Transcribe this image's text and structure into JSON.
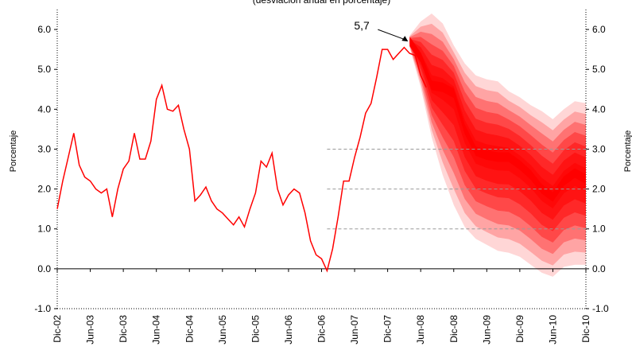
{
  "chart_data": {
    "type": "line",
    "title": "(desviación anual en porcentaje)",
    "ylabel_left": "Porcentaje",
    "ylabel_right": "Porcentaje",
    "ylim": [
      -1.0,
      6.5
    ],
    "yticks": [
      "6.0",
      "5.0",
      "4.0",
      "3.0",
      "2.0",
      "1.0",
      "0.0",
      "-1.0"
    ],
    "ytick_values": [
      6,
      5,
      4,
      3,
      2,
      1,
      0,
      -1
    ],
    "x_range": [
      0,
      96
    ],
    "xticks": [
      {
        "label": "Dic-02",
        "x": 0
      },
      {
        "label": "Jun-03",
        "x": 6
      },
      {
        "label": "Dic-03",
        "x": 12
      },
      {
        "label": "Jun-04",
        "x": 18
      },
      {
        "label": "Dic-04",
        "x": 24
      },
      {
        "label": "Jun-05",
        "x": 30
      },
      {
        "label": "Dic-05",
        "x": 36
      },
      {
        "label": "Jun-06",
        "x": 42
      },
      {
        "label": "Dic-06",
        "x": 48
      },
      {
        "label": "Jun-07",
        "x": 54
      },
      {
        "label": "Dic-07",
        "x": 60
      },
      {
        "label": "Jun-08",
        "x": 66
      },
      {
        "label": "Dic-08",
        "x": 72
      },
      {
        "label": "Jun-09",
        "x": 78
      },
      {
        "label": "Dic-09",
        "x": 84
      },
      {
        "label": "Jun-10",
        "x": 90
      },
      {
        "label": "Dic-10",
        "x": 96
      }
    ],
    "reference_lines": [
      {
        "y": 3.0,
        "x_from": 49,
        "x_to": 96
      },
      {
        "y": 2.0,
        "x_from": 49,
        "x_to": 96
      },
      {
        "y": 1.0,
        "x_from": 49,
        "x_to": 96
      }
    ],
    "series": [
      {
        "type": "line",
        "color": "#ff0000",
        "x": [
          0,
          1,
          2,
          3,
          4,
          5,
          6,
          7,
          8,
          9,
          10,
          11,
          12,
          13,
          14,
          15,
          16,
          17,
          18,
          19,
          20,
          21,
          22,
          23,
          24,
          25,
          26,
          27,
          28,
          29,
          30,
          31,
          32,
          33,
          34,
          35,
          36,
          37,
          38,
          39,
          40,
          41,
          42,
          43,
          44,
          45,
          46,
          47,
          48,
          49,
          50,
          51,
          52,
          53,
          54,
          55,
          56,
          57,
          58,
          59,
          60,
          61,
          62,
          63,
          64,
          65,
          66,
          67
        ],
        "y": [
          1.5,
          2.2,
          2.8,
          3.4,
          2.6,
          2.3,
          2.2,
          2.0,
          1.9,
          2.0,
          1.3,
          2.0,
          2.5,
          2.7,
          3.4,
          2.75,
          2.75,
          3.2,
          4.25,
          4.6,
          4.0,
          3.95,
          4.1,
          3.5,
          3.0,
          1.7,
          1.85,
          2.05,
          1.7,
          1.5,
          1.4,
          1.25,
          1.1,
          1.3,
          1.05,
          1.5,
          1.9,
          2.7,
          2.55,
          2.9,
          2.0,
          1.6,
          1.85,
          2.0,
          1.9,
          1.4,
          0.7,
          0.35,
          0.25,
          -0.05,
          0.5,
          1.3,
          2.2,
          2.2,
          2.8,
          3.3,
          3.9,
          4.15,
          4.8,
          5.5,
          5.5,
          5.25,
          5.4,
          5.55,
          5.4,
          5.35,
          4.85,
          4.55
        ]
      }
    ],
    "fan": {
      "color": "#ff0000",
      "x": [
        64,
        66,
        68,
        70,
        72,
        74,
        76,
        78,
        80,
        82,
        84,
        86,
        88,
        90,
        92,
        94,
        96
      ],
      "center": [
        5.7,
        5.3,
        4.6,
        4.55,
        4.4,
        3.5,
        2.95,
        2.85,
        2.8,
        2.8,
        2.6,
        2.35,
        2.0,
        1.8,
        2.2,
        2.4,
        2.25
      ],
      "upper": [
        5.85,
        6.2,
        6.4,
        6.15,
        5.6,
        5.15,
        4.85,
        4.75,
        4.7,
        4.45,
        4.3,
        4.1,
        3.95,
        3.75,
        4.0,
        4.2,
        4.15
      ],
      "lower": [
        5.55,
        4.55,
        3.3,
        2.35,
        1.6,
        1.05,
        0.75,
        0.6,
        0.45,
        0.4,
        0.3,
        0.1,
        -0.1,
        -0.2,
        0.05,
        0.1,
        0.1
      ],
      "bands": 7
    },
    "annotations": [
      {
        "text": "5,7",
        "x": 64,
        "y": 5.7
      }
    ]
  }
}
